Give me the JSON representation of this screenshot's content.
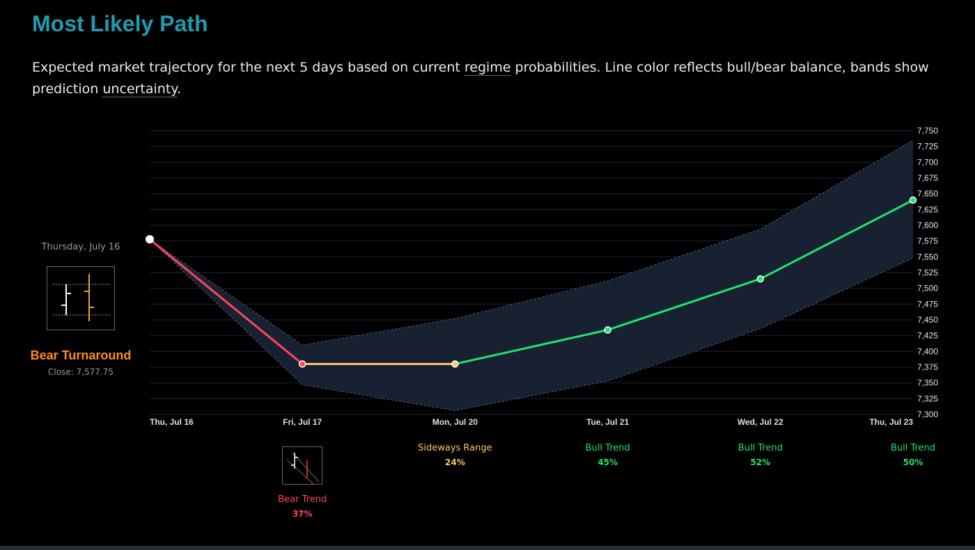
{
  "header": {
    "title": "Most Likely Path",
    "desc_part1": "Expected market trajectory for the next 5 days based on current ",
    "desc_term1": "regime",
    "desc_part2": " probabilities. Line color reflects bull/bear balance, bands show prediction ",
    "desc_term2": "uncertainty",
    "desc_part3": "."
  },
  "current": {
    "date": "Thursday, July 16",
    "regime": "Bear Turnaround",
    "close": "Close: 7,577.75",
    "regime_color": "#ff8c1a"
  },
  "chart_data": {
    "type": "line",
    "title": "",
    "xlabel": "",
    "ylabel": "",
    "categories": [
      "Thu, Jul 16",
      "Fri, Jul 17",
      "Mon, Jul 20",
      "Tue, Jul 21",
      "Wed, Jul 22",
      "Thu, Jul 23"
    ],
    "series": [
      {
        "values": [
          7577.75,
          7380,
          7380,
          7434,
          7515,
          7640
        ]
      }
    ],
    "band_upper": [
      7577.75,
      7410,
      7452,
      7512,
      7594,
      7735
    ],
    "band_lower": [
      7577.75,
      7347,
      7306,
      7353,
      7436,
      7548
    ],
    "segment_colors": [
      "#ff4756",
      "#ffc766",
      "#22e36d",
      "#22e36d",
      "#22e36d"
    ],
    "point_colors": [
      "#ffffff",
      "#ff4756",
      "#ffc766",
      "#22e36d",
      "#22e36d",
      "#22e36d"
    ],
    "ylim": [
      7300,
      7750
    ],
    "yticks": [
      "7,300",
      "7,325",
      "7,350",
      "7,375",
      "7,400",
      "7,425",
      "7,450",
      "7,475",
      "7,500",
      "7,525",
      "7,550",
      "7,575",
      "7,600",
      "7,625",
      "7,650",
      "7,675",
      "7,700",
      "7,725",
      "7,750"
    ],
    "grid": true,
    "y_axis_side": "right",
    "band_color": "#172132"
  },
  "regimes": [
    {
      "name": "Bear Trend",
      "prob": "37%",
      "color": "#ff4756"
    },
    {
      "name": "Sideways Range",
      "prob": "24%",
      "color": "#ffc766"
    },
    {
      "name": "Bull Trend",
      "prob": "45%",
      "color": "#22e36d"
    },
    {
      "name": "Bull Trend",
      "prob": "52%",
      "color": "#22e36d"
    },
    {
      "name": "Bull Trend",
      "prob": "50%",
      "color": "#22e36d"
    }
  ]
}
